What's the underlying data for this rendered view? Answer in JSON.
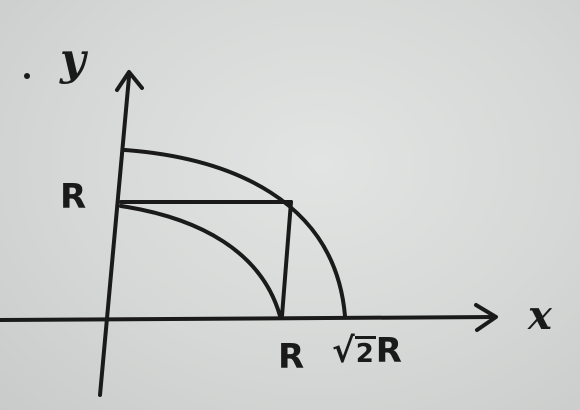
{
  "labels": {
    "y_axis": "y",
    "x_axis": "x",
    "r_on_y": "R",
    "r_on_x": "R",
    "sqrt2r_sign": "√",
    "sqrt2r_radicand": "2",
    "sqrt2r_suffix": "R"
  }
}
